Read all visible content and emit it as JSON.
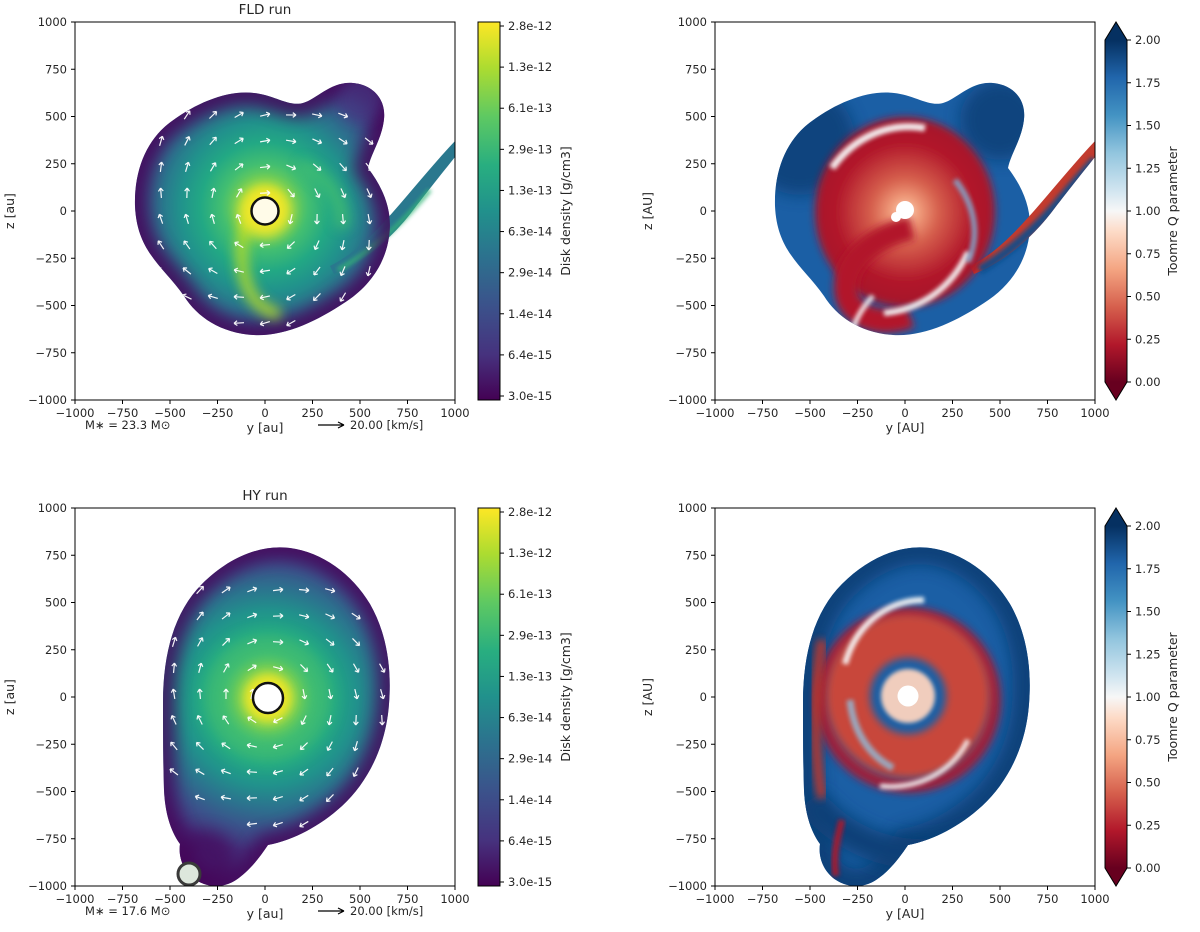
{
  "figure": {
    "background": "#ffffff"
  },
  "colors": {
    "viridis_low": "#440154",
    "viridis_mid": "#21918c",
    "viridis_high": "#fde725",
    "rdbu_blue": "#053061",
    "rdbu_white": "#f7f7f7",
    "rdbu_red": "#67001f"
  },
  "panels": {
    "fld_density": {
      "title": "FLD run",
      "xlabel": "y [au]",
      "ylabel": "z [au]",
      "xticks": [
        "−1000",
        "−750",
        "−500",
        "−250",
        "0",
        "250",
        "500",
        "750",
        "1000"
      ],
      "yticks": [
        "1000",
        "750",
        "500",
        "250",
        "0",
        "−250",
        "−500",
        "−750",
        "−1000"
      ],
      "annotation_mass": "M∗ = 23.3 M⊙",
      "quiver_key_label": "20.00 [km/s]",
      "colorbar": {
        "label": "Disk density [g/cm3]",
        "ticks": [
          "2.8e-12",
          "1.3e-12",
          "6.1e-13",
          "2.9e-13",
          "1.3e-13",
          "6.3e-14",
          "2.9e-14",
          "1.4e-14",
          "6.4e-15",
          "3.0e-15"
        ]
      }
    },
    "fld_toomre": {
      "xlabel": "y [AU]",
      "ylabel": "z [AU]",
      "xticks": [
        "−1000",
        "−750",
        "−500",
        "−250",
        "0",
        "250",
        "500",
        "750",
        "1000"
      ],
      "yticks": [
        "1000",
        "750",
        "500",
        "250",
        "0",
        "−250",
        "−500",
        "−750",
        "−1000"
      ],
      "colorbar": {
        "label": "Toomre Q parameter",
        "ticks": [
          "2.00",
          "1.75",
          "1.50",
          "1.25",
          "1.00",
          "0.75",
          "0.50",
          "0.25",
          "0.00"
        ]
      }
    },
    "hy_density": {
      "title": "HY run",
      "xlabel": "y [au]",
      "ylabel": "z [au]",
      "xticks": [
        "−1000",
        "−750",
        "−500",
        "−250",
        "0",
        "250",
        "500",
        "750",
        "1000"
      ],
      "yticks": [
        "1000",
        "750",
        "500",
        "250",
        "0",
        "−250",
        "−500",
        "−750",
        "−1000"
      ],
      "annotation_mass": "M∗ = 17.6 M⊙",
      "quiver_key_label": "20.00 [km/s]",
      "colorbar": {
        "label": "Disk density [g/cm3]",
        "ticks": [
          "2.8e-12",
          "1.3e-12",
          "6.1e-13",
          "2.9e-13",
          "1.3e-13",
          "6.3e-14",
          "2.9e-14",
          "1.4e-14",
          "6.4e-15",
          "3.0e-15"
        ]
      }
    },
    "hy_toomre": {
      "xlabel": "y [AU]",
      "ylabel": "z [AU]",
      "xticks": [
        "−1000",
        "−750",
        "−500",
        "−250",
        "0",
        "250",
        "500",
        "750",
        "1000"
      ],
      "yticks": [
        "1000",
        "750",
        "500",
        "250",
        "0",
        "−250",
        "−500",
        "−750",
        "−1000"
      ],
      "colorbar": {
        "label": "Toomre Q parameter",
        "ticks": [
          "2.00",
          "1.75",
          "1.50",
          "1.25",
          "1.00",
          "0.75",
          "0.50",
          "0.25",
          "0.00"
        ]
      }
    }
  },
  "chart_data": [
    {
      "type": "heatmap",
      "panel": "top-left",
      "title": "FLD run",
      "xlabel": "y [au]",
      "ylabel": "z [au]",
      "xlim": [
        -1000,
        1000
      ],
      "ylim": [
        -1000,
        1000
      ],
      "xticks": [
        -1000,
        -750,
        -500,
        -250,
        0,
        250,
        500,
        750,
        1000
      ],
      "yticks": [
        -1000,
        -750,
        -500,
        -250,
        0,
        250,
        500,
        750,
        1000
      ],
      "colormap": "viridis",
      "colorbar_label": "Disk density [g/cm3]",
      "colorbar_scale": "log",
      "colorbar_ticks": [
        2.8e-12,
        1.3e-12,
        6.1e-13,
        2.9e-13,
        1.3e-13,
        6.3e-14,
        2.9e-14,
        1.4e-14,
        6.4e-15,
        3e-15
      ],
      "annotations": [
        "M∗ = 23.3 M⊙"
      ],
      "quiver_key": "20.00 [km/s]",
      "markers": [
        {
          "name": "sink-star",
          "x": 0,
          "y": 0
        }
      ],
      "features": [
        "irregular rotating disk roughly 1200 au across centered on the sink",
        "bright high-density yellow-green core at the origin",
        "trailing spiral arm extending to the right plot edge near (1000, 150)",
        "protrusion of low-density material toward (450, 550)",
        "white velocity vectors circulating around the center"
      ]
    },
    {
      "type": "heatmap",
      "panel": "top-right",
      "xlabel": "y [AU]",
      "ylabel": "z [AU]",
      "xlim": [
        -1000,
        1000
      ],
      "ylim": [
        -1000,
        1000
      ],
      "colormap": "RdBu",
      "colorbar_label": "Toomre Q parameter",
      "colorbar_range": [
        0.0,
        2.0
      ],
      "colorbar_extend": "both",
      "colorbar_ticks": [
        2.0,
        1.75,
        1.5,
        1.25,
        1.0,
        0.75,
        0.5,
        0.25,
        0.0
      ],
      "features": [
        "same disk silhouette as FLD density panel",
        "outer envelope stable with Q >= 2 (dark blue)",
        "large gravitationally unstable Q < 1 region (red) spiraling around the center",
        "white hole at the sink position",
        "red arm bounded by dark blue reaching the right plot edge"
      ]
    },
    {
      "type": "heatmap",
      "panel": "bottom-left",
      "title": "HY run",
      "xlabel": "y [au]",
      "ylabel": "z [au]",
      "xlim": [
        -1000,
        1000
      ],
      "ylim": [
        -1000,
        1000
      ],
      "colormap": "viridis",
      "colorbar_label": "Disk density [g/cm3]",
      "colorbar_scale": "log",
      "colorbar_ticks": [
        2.8e-12,
        1.3e-12,
        6.1e-13,
        2.9e-13,
        1.3e-13,
        6.3e-14,
        2.9e-14,
        1.4e-14,
        6.4e-15,
        3e-15
      ],
      "annotations": [
        "M∗ = 17.6 M⊙"
      ],
      "quiver_key": "20.00 [km/s]",
      "markers": [
        {
          "name": "sink-star",
          "x": 0,
          "y": 0
        },
        {
          "name": "companion-sink",
          "x": -420,
          "y": -950
        }
      ],
      "features": [
        "more circular, smoother disk about 1300 au across",
        "bright core at the origin with circled sink marker",
        "low-density extension toward the bottom-left with a second circled sink near (-420, -950)",
        "white velocity vectors circulating around the center"
      ]
    },
    {
      "type": "heatmap",
      "panel": "bottom-right",
      "xlabel": "y [AU]",
      "ylabel": "z [AU]",
      "xlim": [
        -1000,
        1000
      ],
      "ylim": [
        -1000,
        1000
      ],
      "colormap": "RdBu",
      "colorbar_label": "Toomre Q parameter",
      "colorbar_range": [
        0.0,
        2.0
      ],
      "colorbar_extend": "both",
      "colorbar_ticks": [
        2.0,
        1.75,
        1.5,
        1.25,
        1.0,
        0.75,
        0.5,
        0.25,
        0.0
      ],
      "features": [
        "same disk silhouette as HY density panel",
        "thick stable Q >= 2 dark-blue envelope, heaviest at the bottom",
        "unstable Q < 1 red annulus circling the center",
        "white hole at the sink position and thin white arcs between red and blue zones"
      ]
    }
  ]
}
